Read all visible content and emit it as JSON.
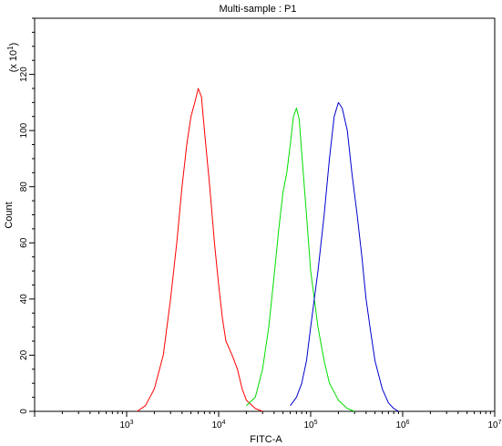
{
  "chart_data": {
    "type": "line",
    "title": "Multi-sample : P1",
    "xlabel": "FITC-A",
    "ylabel": "Count",
    "y_multiplier_label_base": "(x 10",
    "y_multiplier_label_exp": "1",
    "y_multiplier_label_close": ")",
    "x_scale": "log",
    "xlim": [
      100,
      10000000
    ],
    "ylim": [
      0,
      140
    ],
    "x_tick_labels": [
      {
        "value": 1000,
        "base": "10",
        "exp": "3"
      },
      {
        "value": 10000,
        "base": "10",
        "exp": "4"
      },
      {
        "value": 100000,
        "base": "10",
        "exp": "5"
      },
      {
        "value": 1000000,
        "base": "10",
        "exp": "6"
      },
      {
        "value": 10000000,
        "base": "10",
        "exp": "7"
      }
    ],
    "y_tick_labels": [
      "0",
      "20",
      "40",
      "60",
      "80",
      "100",
      "120"
    ],
    "y_ticks": [
      0,
      20,
      40,
      60,
      80,
      100,
      120
    ],
    "grid": false,
    "legend": "none",
    "series": [
      {
        "color": "#ff0000",
        "x": [
          1300,
          1600,
          2000,
          2500,
          3000,
          3500,
          4000,
          4500,
          5000,
          5500,
          6000,
          6500,
          7000,
          8000,
          9000,
          10000,
          11000,
          12000,
          14000,
          16000,
          18000,
          20000,
          25000,
          30000
        ],
        "y": [
          0,
          2,
          8,
          20,
          40,
          60,
          80,
          95,
          105,
          110,
          115,
          112,
          100,
          80,
          60,
          45,
          33,
          25,
          20,
          15,
          8,
          4,
          1,
          0
        ]
      },
      {
        "color": "#00dd00",
        "x": [
          20000,
          25000,
          30000,
          35000,
          40000,
          45000,
          50000,
          55000,
          60000,
          65000,
          70000,
          75000,
          80000,
          90000,
          100000,
          120000,
          140000,
          160000,
          200000,
          250000,
          300000
        ],
        "y": [
          2,
          5,
          15,
          30,
          48,
          65,
          78,
          85,
          95,
          105,
          108,
          104,
          92,
          70,
          50,
          30,
          18,
          10,
          4,
          1,
          0
        ]
      },
      {
        "color": "#0000cc",
        "x": [
          60000,
          70000,
          80000,
          90000,
          100000,
          120000,
          140000,
          160000,
          180000,
          200000,
          220000,
          250000,
          280000,
          320000,
          360000,
          400000,
          450000,
          500000,
          600000,
          700000,
          800000,
          900000
        ],
        "y": [
          2,
          5,
          10,
          18,
          30,
          50,
          70,
          90,
          105,
          110,
          108,
          100,
          85,
          70,
          55,
          40,
          28,
          18,
          8,
          3,
          1,
          0
        ]
      }
    ]
  }
}
